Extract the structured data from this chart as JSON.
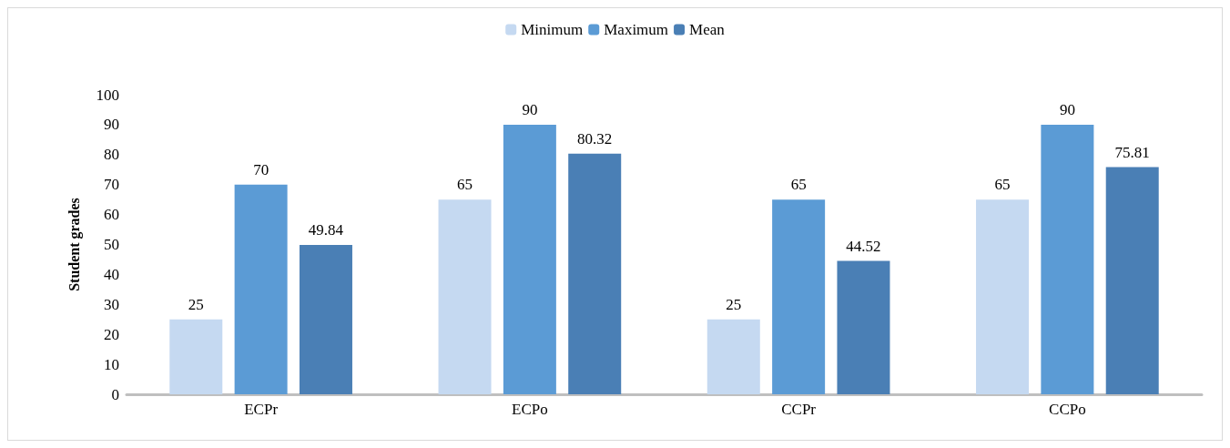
{
  "chart_data": {
    "type": "bar",
    "ylabel": "Student grades",
    "categories": [
      "ECPr",
      "ECPo",
      "CCPr",
      "CCPo"
    ],
    "series": [
      {
        "name": "Minimum",
        "color": "#c5d9f1",
        "values": [
          25,
          65,
          25,
          65
        ]
      },
      {
        "name": "Maximum",
        "color": "#5b9bd5",
        "values": [
          70,
          90,
          65,
          90
        ]
      },
      {
        "name": "Mean",
        "color": "#4a7fb5",
        "values": [
          49.84,
          80.32,
          44.52,
          75.81
        ]
      }
    ],
    "ylim": [
      0,
      100
    ],
    "yticks": [
      0,
      10,
      20,
      30,
      40,
      50,
      60,
      70,
      80,
      90,
      100
    ],
    "grid": false,
    "legend": "top",
    "data_labels": true
  }
}
